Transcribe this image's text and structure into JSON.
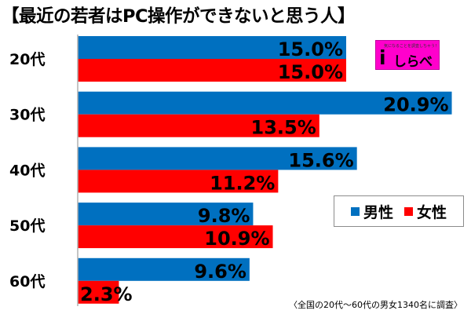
{
  "title": {
    "open_bracket": "【",
    "text": "最近の若者はPC操作ができないと思う人",
    "close_bracket": "】"
  },
  "chart_data": {
    "type": "bar",
    "orientation": "horizontal",
    "title": "最近の若者はPC操作ができないと思う人",
    "categories": [
      "20代",
      "30代",
      "40代",
      "50代",
      "60代"
    ],
    "series": [
      {
        "name": "男性",
        "color": "#0070c0",
        "values": [
          15.0,
          20.9,
          15.6,
          9.8,
          9.6
        ]
      },
      {
        "name": "女性",
        "color": "#ff0000",
        "values": [
          15.0,
          13.5,
          11.2,
          10.9,
          2.3
        ]
      }
    ],
    "value_suffix": "%",
    "xlim": [
      0,
      21
    ],
    "grid": false,
    "legend_position": "right"
  },
  "legend": {
    "male": "男性",
    "female": "女性"
  },
  "logo": {
    "tagline": "気になることを調査しちゃう！",
    "glyph": "i",
    "name": "しらべぇ"
  },
  "footnote": "〈全国の20代〜60代の男女1340名に調査〉"
}
